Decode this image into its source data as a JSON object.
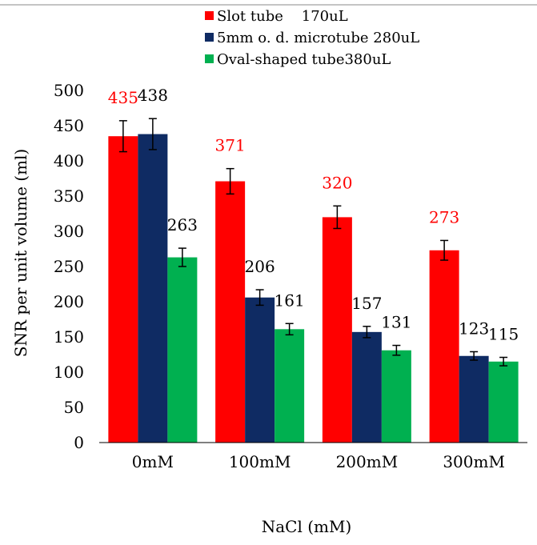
{
  "chart_data": {
    "type": "bar",
    "title": "",
    "xlabel": "NaCl (mM)",
    "ylabel": "SNR per unit volume (ml)",
    "ylim": [
      0,
      500
    ],
    "yticks": [
      0,
      50,
      100,
      150,
      200,
      250,
      300,
      350,
      400,
      450,
      500
    ],
    "categories": [
      "0mM",
      "100mM",
      "200mM",
      "300mM"
    ],
    "legend_position": "top",
    "grid": false,
    "series": [
      {
        "name": "Slot tube    170uL",
        "color": "#ff0000",
        "label_color": "#ff0000",
        "values": [
          435,
          371,
          320,
          273
        ],
        "errors": [
          22,
          18,
          16,
          14
        ],
        "labels": [
          "435",
          "371",
          "320",
          "273"
        ]
      },
      {
        "name": "5mm o. d. microtube 280uL",
        "color": "#0f2b63",
        "label_color": "#000000",
        "values": [
          438,
          206,
          157,
          123
        ],
        "errors": [
          22,
          11,
          8,
          6
        ],
        "labels": [
          "438",
          "206",
          "157",
          "123"
        ]
      },
      {
        "name": "Oval-shaped tube380uL",
        "color": "#00b050",
        "label_color": "#000000",
        "values": [
          263,
          161,
          131,
          115
        ],
        "errors": [
          13,
          8,
          7,
          6
        ],
        "labels": [
          "263",
          "161",
          "131",
          "115"
        ]
      }
    ]
  }
}
